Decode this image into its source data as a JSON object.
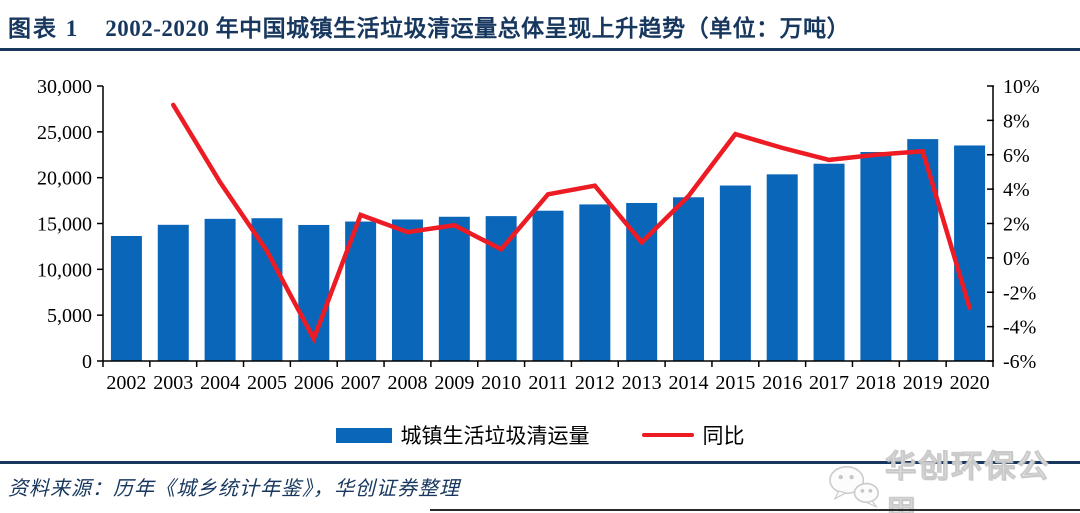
{
  "header": {
    "label": "图表 1",
    "title": "2002-2020 年中国城镇生活垃圾清运量总体呈现上升趋势（单位：万吨）",
    "accent_color": "#17375E"
  },
  "chart_data": {
    "type": "bar",
    "title": "2002-2020 年中国城镇生活垃圾清运量总体呈现上升趋势",
    "unit": "万吨",
    "categories": [
      "2002",
      "2003",
      "2004",
      "2005",
      "2006",
      "2007",
      "2008",
      "2009",
      "2010",
      "2011",
      "2012",
      "2013",
      "2014",
      "2015",
      "2016",
      "2017",
      "2018",
      "2019",
      "2020"
    ],
    "series": [
      {
        "name": "城镇生活垃圾清运量",
        "type": "bar",
        "axis": "left",
        "color": "#0A66B8",
        "values": [
          13638,
          14857,
          15509,
          15577,
          14841,
          15215,
          15438,
          15734,
          15805,
          16395,
          17081,
          17239,
          17860,
          19142,
          20362,
          21521,
          22802,
          24206,
          23512
        ]
      },
      {
        "name": "同比",
        "type": "line",
        "axis": "right",
        "color": "#ED1C24",
        "unit": "%",
        "values": [
          null,
          8.9,
          4.4,
          0.4,
          -4.7,
          2.5,
          1.5,
          1.9,
          0.5,
          3.7,
          4.2,
          0.9,
          3.6,
          7.2,
          6.4,
          5.7,
          6.0,
          6.2,
          -2.9
        ]
      }
    ],
    "left_axis": {
      "min": 0,
      "max": 30000,
      "ticks": [
        {
          "v": 0,
          "label": "0"
        },
        {
          "v": 5000,
          "label": "5,000"
        },
        {
          "v": 10000,
          "label": "10,000"
        },
        {
          "v": 15000,
          "label": "15,000"
        },
        {
          "v": 20000,
          "label": "20,000"
        },
        {
          "v": 25000,
          "label": "25,000"
        },
        {
          "v": 30000,
          "label": "30,000"
        }
      ]
    },
    "right_axis": {
      "min": -6,
      "max": 10,
      "ticks": [
        {
          "v": -6,
          "label": "-6%"
        },
        {
          "v": -4,
          "label": "-4%"
        },
        {
          "v": -2,
          "label": "-2%"
        },
        {
          "v": 0,
          "label": "0%"
        },
        {
          "v": 2,
          "label": "2%"
        },
        {
          "v": 4,
          "label": "4%"
        },
        {
          "v": 6,
          "label": "6%"
        },
        {
          "v": 8,
          "label": "8%"
        },
        {
          "v": 10,
          "label": "10%"
        }
      ]
    },
    "grid": false,
    "legend_position": "bottom"
  },
  "legend": {
    "bar_label": "城镇生活垃圾清运量",
    "line_label": "同比"
  },
  "footer": {
    "source": "资料来源：历年《城乡统计年鉴》，华创证券整理",
    "watermark": "华创环保公用"
  }
}
